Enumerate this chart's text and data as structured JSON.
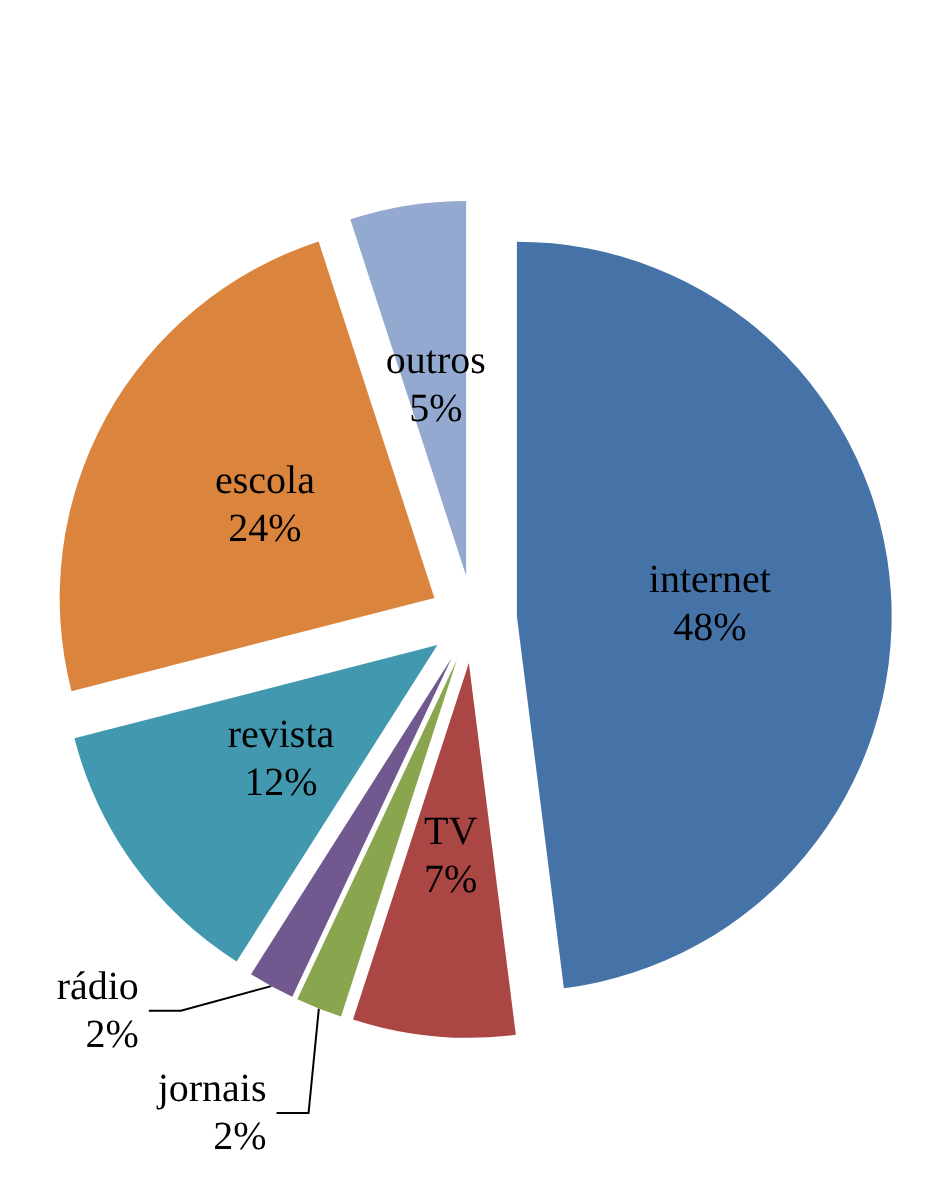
{
  "chart_data": {
    "type": "pie",
    "categories": [
      "internet",
      "TV",
      "jornais",
      "rádio",
      "revista",
      "escola",
      "outros"
    ],
    "values": [
      48,
      7,
      2,
      2,
      12,
      24,
      5
    ],
    "value_labels": [
      "48%",
      "7%",
      "2%",
      "2%",
      "12%",
      "24%",
      "5%"
    ],
    "colors": [
      "#4572a7",
      "#aa4643",
      "#89a54e",
      "#71588f",
      "#4198af",
      "#db843d",
      "#93a9cf"
    ],
    "legend": false
  }
}
